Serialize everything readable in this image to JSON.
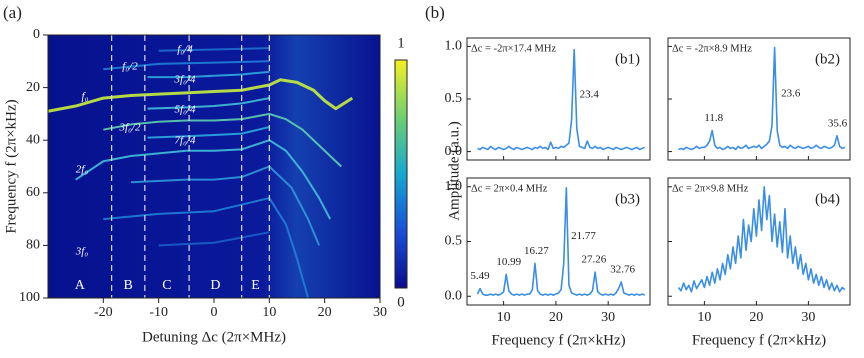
{
  "panel_labels": [
    "(a)",
    "(b)"
  ],
  "amplitude_label": "Amplitude (a.u.)",
  "chart_data": [
    {
      "type": "heatmap",
      "ylabel": "Frequency f (2π×kHz)",
      "xlabel": "Detuning Δc (2π×MHz)",
      "xlim": [
        -30,
        30
      ],
      "xticks": [
        -20,
        -10,
        0,
        10,
        20,
        30
      ],
      "ylim": [
        0,
        100
      ],
      "yticks": [
        0,
        20,
        40,
        60,
        80,
        100
      ],
      "y_inverted": true,
      "clim": [
        0,
        1
      ],
      "cticks": [
        0,
        1
      ],
      "region_bounds": [
        -18.5,
        -12.5,
        -4.5,
        5,
        10
      ],
      "regions": [
        "A",
        "B",
        "C",
        "D",
        "E"
      ],
      "annotations": [
        "f₀/4",
        "f₀/2",
        "3f₀/4",
        "f₀",
        "5f₀/4",
        "3f₀/2",
        "7f₀/4",
        "2f₀",
        "3f₀"
      ],
      "ridges": [
        {
          "color": "#c8f03c",
          "x": [
            -30,
            -25,
            -20,
            -15,
            -10,
            -5,
            0,
            5,
            10,
            12,
            15,
            18,
            20,
            22,
            25
          ],
          "y": [
            29,
            27,
            24,
            23,
            22.5,
            22,
            21.5,
            21,
            19,
            17,
            18,
            21,
            25,
            28,
            24
          ]
        },
        {
          "color": "#2fa8e0",
          "x": [
            -12,
            -5,
            0,
            5,
            10
          ],
          "y": [
            16,
            16,
            15.5,
            15,
            14
          ]
        },
        {
          "color": "#44c0d8",
          "x": [
            -12,
            -5,
            0,
            5,
            10
          ],
          "y": [
            28,
            27.5,
            27,
            26,
            24
          ]
        },
        {
          "color": "#5fd0b0",
          "x": [
            -20,
            -15,
            -10,
            -5,
            0,
            5,
            10,
            13,
            16,
            20,
            23
          ],
          "y": [
            36,
            34,
            33,
            32.5,
            32.5,
            32,
            30,
            32,
            36,
            44,
            50
          ]
        },
        {
          "color": "#2fa8e0",
          "x": [
            -12,
            -5,
            0,
            5,
            10
          ],
          "y": [
            39,
            38.5,
            38,
            37.5,
            35
          ]
        },
        {
          "color": "#44c0d8",
          "x": [
            -25,
            -20,
            -15,
            -10,
            -5,
            0,
            5,
            10,
            13,
            16,
            19,
            21
          ],
          "y": [
            55,
            48,
            46,
            45,
            44,
            44,
            43.5,
            40,
            44,
            52,
            62,
            70
          ]
        },
        {
          "color": "#1f7fd8",
          "x": [
            -20,
            -10,
            0,
            10
          ],
          "y": [
            13,
            11,
            10.5,
            10
          ]
        },
        {
          "color": "#1f6fd0",
          "x": [
            -10,
            0,
            10
          ],
          "y": [
            6,
            5.5,
            5
          ]
        },
        {
          "color": "#2f98dc",
          "x": [
            -15,
            -5,
            0,
            5,
            10,
            14,
            17,
            19
          ],
          "y": [
            56,
            55,
            55,
            54,
            50,
            58,
            70,
            80
          ]
        },
        {
          "color": "#1f7fd8",
          "x": [
            -20,
            -10,
            0,
            10,
            13,
            15,
            17
          ],
          "y": [
            70,
            68,
            67,
            62,
            72,
            85,
            100
          ]
        },
        {
          "color": "#1a5fc8",
          "x": [
            -10,
            0,
            10
          ],
          "y": [
            80,
            79,
            75
          ]
        }
      ]
    },
    {
      "type": "line",
      "panel_label": "(b1)",
      "annotation": "Δc = -2π×17.4 MHz",
      "color": "#3a8ee6",
      "xlim": [
        3,
        38
      ],
      "xticks": [
        10,
        20,
        30
      ],
      "show_xtick_labels": false,
      "ylim": [
        -0.08,
        1.08
      ],
      "yticks": [
        {
          "value": 0,
          "label": "0.0"
        },
        {
          "value": 0.5,
          "label": "0.5"
        },
        {
          "value": 1,
          "label": "1.0"
        }
      ],
      "show_ytick_labels": true,
      "peak_labels": [
        23.4
      ],
      "x": [
        5,
        5.5,
        6,
        6.5,
        7,
        7.5,
        8,
        8.5,
        9,
        9.5,
        10,
        10.5,
        11,
        11.5,
        12,
        12.5,
        13,
        13.5,
        14,
        14.5,
        15,
        15.5,
        16,
        16.5,
        17,
        17.5,
        18,
        18.5,
        19,
        19.5,
        20,
        20.5,
        21,
        21.5,
        22,
        22.5,
        23,
        23.5,
        24,
        24.5,
        25,
        25.5,
        26,
        26.5,
        27,
        27.5,
        28,
        28.5,
        29,
        29.5,
        30,
        30.5,
        31,
        31.5,
        32,
        32.5,
        33,
        33.5,
        34,
        34.5,
        35,
        35.5,
        36,
        36.5,
        37
      ],
      "values": [
        0.03,
        0.02,
        0.04,
        0.03,
        0.02,
        0.05,
        0.03,
        0.02,
        0.04,
        0.03,
        0.02,
        0.03,
        0.05,
        0.03,
        0.02,
        0.04,
        0.03,
        0.02,
        0.03,
        0.04,
        0.03,
        0.02,
        0.04,
        0.03,
        0.05,
        0.03,
        0.04,
        0.02,
        0.09,
        0.03,
        0.04,
        0.03,
        0.05,
        0.04,
        0.06,
        0.08,
        0.3,
        0.97,
        0.22,
        0.05,
        0.04,
        0.03,
        0.1,
        0.04,
        0.03,
        0.05,
        0.03,
        0.04,
        0.02,
        0.03,
        0.04,
        0.03,
        0.02,
        0.04,
        0.03,
        0.02,
        0.03,
        0.04,
        0.03,
        0.02,
        0.03,
        0.04,
        0.02,
        0.03,
        0.04
      ]
    },
    {
      "type": "line",
      "panel_label": "(b2)",
      "annotation": "Δc = -2π×8.9 MHz",
      "color": "#3a8ee6",
      "xlim": [
        3,
        38
      ],
      "xticks": [
        10,
        20,
        30
      ],
      "show_xtick_labels": false,
      "ylim": [
        -0.08,
        1.08
      ],
      "yticks": [
        0,
        0.5,
        1
      ],
      "show_ytick_labels": false,
      "peak_labels": [
        11.8,
        23.6,
        35.6
      ],
      "x": [
        5,
        5.5,
        6,
        6.5,
        7,
        7.5,
        8,
        8.5,
        9,
        9.5,
        10,
        10.5,
        11,
        11.5,
        12,
        12.5,
        13,
        13.5,
        14,
        14.5,
        15,
        15.5,
        16,
        16.5,
        17,
        17.5,
        18,
        18.5,
        19,
        19.5,
        20,
        20.5,
        21,
        21.5,
        22,
        22.5,
        23,
        23.5,
        24,
        24.5,
        25,
        25.5,
        26,
        26.5,
        27,
        27.5,
        28,
        28.5,
        29,
        29.5,
        30,
        30.5,
        31,
        31.5,
        32,
        32.5,
        33,
        33.5,
        34,
        34.5,
        35,
        35.5,
        36,
        36.5,
        37
      ],
      "values": [
        0.02,
        0.03,
        0.02,
        0.04,
        0.03,
        0.02,
        0.03,
        0.05,
        0.03,
        0.04,
        0.04,
        0.06,
        0.1,
        0.2,
        0.06,
        0.03,
        0.04,
        0.02,
        0.03,
        0.05,
        0.03,
        0.04,
        0.02,
        0.05,
        0.03,
        0.04,
        0.06,
        0.03,
        0.04,
        0.05,
        0.04,
        0.06,
        0.03,
        0.05,
        0.07,
        0.1,
        0.25,
        0.99,
        0.2,
        0.06,
        0.04,
        0.05,
        0.03,
        0.06,
        0.04,
        0.03,
        0.05,
        0.04,
        0.03,
        0.04,
        0.05,
        0.03,
        0.04,
        0.06,
        0.04,
        0.03,
        0.05,
        0.04,
        0.03,
        0.04,
        0.06,
        0.15,
        0.05,
        0.03,
        0.04
      ]
    },
    {
      "type": "line",
      "panel_label": "(b3)",
      "annotation": "Δc = 2π×0.4 MHz",
      "color": "#3a8ee6",
      "xlabel": "Frequency f (2π×kHz)",
      "xlim": [
        3,
        38
      ],
      "xticks": [
        10,
        20,
        30
      ],
      "show_xtick_labels": true,
      "ylim": [
        -0.08,
        1.08
      ],
      "yticks": [
        {
          "value": 0,
          "label": "0.0"
        },
        {
          "value": 0.5,
          "label": "0.5"
        },
        {
          "value": 1,
          "label": "1.0"
        }
      ],
      "show_ytick_labels": true,
      "peak_labels": [
        5.49,
        10.99,
        16.27,
        21.77,
        27.26,
        32.76
      ],
      "x": [
        5,
        5.5,
        6,
        6.5,
        7,
        7.5,
        8,
        8.5,
        9,
        9.5,
        10,
        10.5,
        11,
        11.5,
        12,
        12.5,
        13,
        13.5,
        14,
        14.5,
        15,
        15.5,
        16,
        16.5,
        17,
        17.5,
        18,
        18.5,
        19,
        19.5,
        20,
        20.5,
        21,
        21.5,
        22,
        22.5,
        23,
        23.5,
        24,
        24.5,
        25,
        25.5,
        26,
        26.5,
        27,
        27.5,
        28,
        28.5,
        29,
        29.5,
        30,
        30.5,
        31,
        31.5,
        32,
        32.5,
        33,
        33.5,
        34,
        34.5,
        35,
        35.5,
        36,
        36.5,
        37
      ],
      "values": [
        0.02,
        0.07,
        0.02,
        0.01,
        0.01,
        0.02,
        0.01,
        0.02,
        0.01,
        0.02,
        0.04,
        0.2,
        0.05,
        0.02,
        0.01,
        0.02,
        0.01,
        0.02,
        0.01,
        0.02,
        0.02,
        0.06,
        0.3,
        0.05,
        0.02,
        0.01,
        0.02,
        0.01,
        0.02,
        0.01,
        0.02,
        0.03,
        0.06,
        0.3,
        0.99,
        0.1,
        0.03,
        0.02,
        0.01,
        0.02,
        0.01,
        0.02,
        0.01,
        0.02,
        0.05,
        0.22,
        0.04,
        0.02,
        0.01,
        0.02,
        0.01,
        0.02,
        0.01,
        0.03,
        0.07,
        0.13,
        0.03,
        0.02,
        0.01,
        0.02,
        0.01,
        0.02,
        0.01,
        0.02,
        0.01
      ]
    },
    {
      "type": "line",
      "panel_label": "(b4)",
      "annotation": "Δc = 2π×9.8 MHz",
      "color": "#3a8ee6",
      "xlabel": "Frequency f (2π×kHz)",
      "xlim": [
        3,
        38
      ],
      "xticks": [
        10,
        20,
        30
      ],
      "show_xtick_labels": true,
      "ylim": [
        -0.08,
        1.08
      ],
      "yticks": [
        0,
        0.5,
        1
      ],
      "show_ytick_labels": false,
      "peak_labels": [],
      "x": [
        5,
        5.5,
        6,
        6.5,
        7,
        7.5,
        8,
        8.5,
        9,
        9.5,
        10,
        10.5,
        11,
        11.5,
        12,
        12.5,
        13,
        13.5,
        14,
        14.5,
        15,
        15.5,
        16,
        16.5,
        17,
        17.5,
        18,
        18.5,
        19,
        19.5,
        20,
        20.5,
        21,
        21.5,
        22,
        22.5,
        23,
        23.5,
        24,
        24.5,
        25,
        25.5,
        26,
        26.5,
        27,
        27.5,
        28,
        28.5,
        29,
        29.5,
        30,
        30.5,
        31,
        31.5,
        32,
        32.5,
        33,
        33.5,
        34,
        34.5,
        35,
        35.5,
        36,
        36.5,
        37
      ],
      "values": [
        0.08,
        0.05,
        0.12,
        0.06,
        0.1,
        0.04,
        0.14,
        0.07,
        0.11,
        0.15,
        0.08,
        0.18,
        0.1,
        0.22,
        0.12,
        0.25,
        0.15,
        0.3,
        0.2,
        0.38,
        0.25,
        0.45,
        0.3,
        0.55,
        0.35,
        0.7,
        0.42,
        0.65,
        0.5,
        0.8,
        0.55,
        0.88,
        0.6,
        1.0,
        0.7,
        0.92,
        0.5,
        0.75,
        0.45,
        0.68,
        0.4,
        0.8,
        0.35,
        0.55,
        0.3,
        0.45,
        0.25,
        0.38,
        0.2,
        0.3,
        0.15,
        0.25,
        0.12,
        0.2,
        0.1,
        0.18,
        0.08,
        0.15,
        0.06,
        0.12,
        0.05,
        0.1,
        0.04,
        0.08,
        0.06
      ]
    }
  ]
}
